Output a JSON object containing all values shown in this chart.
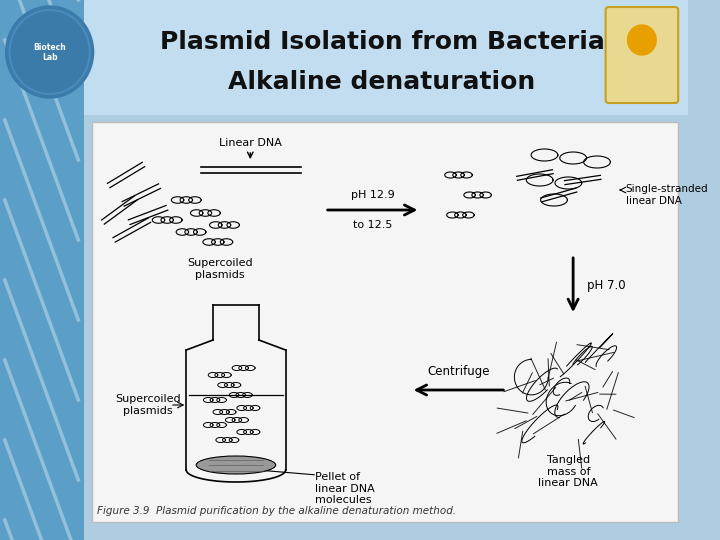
{
  "title_line1": "Plasmid Isolation from Bacteria",
  "title_line2": "Alkaline denaturation",
  "title_fontsize": 18,
  "title_color": "#111111",
  "slide_bg": "#aecde0",
  "left_stripe_color": "#5b9fc8",
  "title_bg_color": "#c2ddf0",
  "content_bg": "#f5f5f5",
  "content_border": "#bbbbbb",
  "figure_caption": "Figure 3.9  Plasmid purification by the alkaline denaturation method.",
  "caption_fontsize": 7.5
}
